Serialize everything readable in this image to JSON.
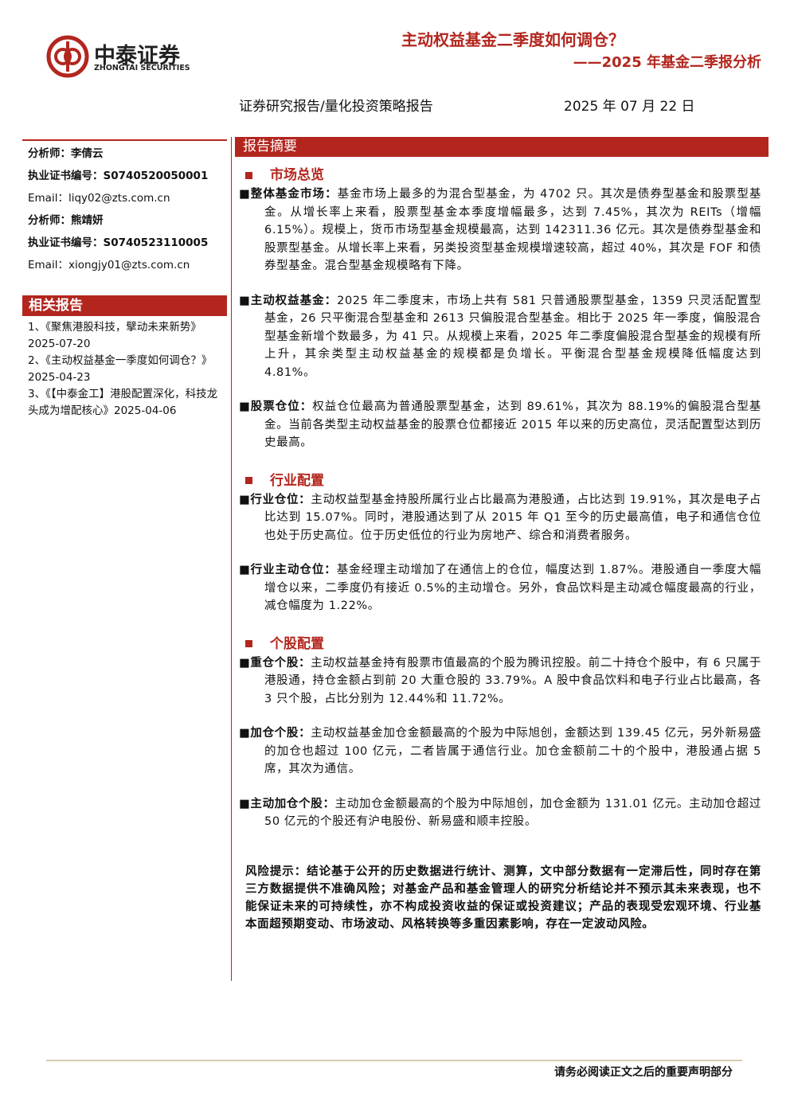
{
  "header": {
    "logo_cn": "中泰证券",
    "logo_en": "ZHONGTAI SECURITIES",
    "title": "主动权益基金二季度如何调仓？",
    "subtitle": "——2025 年基金二季报分析",
    "report_type": "证券研究报告/量化投资策略报告",
    "date": "2025 年 07 月 22 日"
  },
  "sidebar": {
    "analysts": [
      "分析师：李倩云",
      "执业证书编号：S0740520050001",
      "Email：liqy02@zts.com.cn",
      "分析师：熊靖妍",
      "执业证书编号：S0740523110005",
      "Email：xiongjy01@zts.com.cn"
    ],
    "related_title": "相关报告",
    "related": [
      "1、《聚焦港股科技，擘动未来新势》2025-07-20",
      "2、《主动权益基金一季度如何调仓？》2025-04-23",
      "3、《【中泰金工】港股配置深化，科技龙头成为增配核心》2025-04-06"
    ]
  },
  "summary": {
    "title": "报告摘要",
    "sections": [
      {
        "heading": "市场总览",
        "items": [
          {
            "label": "整体基金市场：",
            "text": "基金市场上最多的为混合型基金，为 4702 只。其次是债券型基金和股票型基金。从增长率上来看，股票型基金本季度增幅最多，达到 7.45%，其次为 REITs（增幅 6.15%）。规模上，货币市场型基金规模最高，达到 142311.36 亿元。其次是债券型基金和股票型基金。从增长率上来看，另类投资型基金规模增速较高，超过 40%，其次是 FOF 和债券型基金。混合型基金规模略有下降。"
          },
          {
            "label": "主动权益基金：",
            "text": "2025 年二季度末，市场上共有 581 只普通股票型基金，1359 只灵活配置型基金，26 只平衡混合型基金和 2613 只偏股混合型基金。相比于 2025 年一季度，偏股混合型基金新增个数最多，为 41 只。从规模上来看，2025 年二季度偏股混合型基金的规模有所上升，其余类型主动权益基金的规模都是负增长。平衡混合型基金规模降低幅度达到 4.81%。"
          },
          {
            "label": "股票仓位：",
            "text": "权益仓位最高为普通股票型基金，达到 89.61%，其次为 88.19%的偏股混合型基金。当前各类型主动权益基金的股票仓位都接近 2015 年以来的历史高位，灵活配置型达到历史最高。"
          }
        ]
      },
      {
        "heading": "行业配置",
        "items": [
          {
            "label": "行业仓位：",
            "text": "主动权益型基金持股所属行业占比最高为港股通，占比达到 19.91%，其次是电子占比达到 15.07%。同时，港股通达到了从 2015 年 Q1 至今的历史最高值，电子和通信仓位也处于历史高位。位于历史低位的行业为房地产、综合和消费者服务。"
          },
          {
            "label": "行业主动仓位：",
            "text": "基金经理主动增加了在通信上的仓位，幅度达到 1.87%。港股通自一季度大幅增仓以来，二季度仍有接近 0.5%的主动增仓。另外，食品饮料是主动减仓幅度最高的行业，减仓幅度为 1.22%。"
          }
        ]
      },
      {
        "heading": "个股配置",
        "items": [
          {
            "label": "重仓个股：",
            "text": "主动权益基金持有股票市值最高的个股为腾讯控股。前二十持仓个股中，有 6 只属于港股通，持仓金额占到前 20 大重仓股的 33.79%。A 股中食品饮料和电子行业占比最高，各 3 只个股，占比分别为 12.44%和 11.72%。"
          },
          {
            "label": "加仓个股：",
            "text": "主动权益基金加仓金额最高的个股为中际旭创，金额达到 139.45 亿元，另外新易盛的加仓也超过 100 亿元，二者皆属于通信行业。加仓金额前二十的个股中，港股通占据 5 席，其次为通信。"
          },
          {
            "label": "主动加仓个股：",
            "text": "主动加仓金额最高的个股为中际旭创，加仓金额为 131.01 亿元。主动加仓超过 50 亿元的个股还有沪电股份、新易盛和顺丰控股。"
          }
        ]
      }
    ],
    "risk": "风险提示：结论基于公开的历史数据进行统计、测算，文中部分数据有一定滞后性，同时存在第三方数据提供不准确风险；对基金产品和基金管理人的研究分析结论并不预示其未来表现，也不能保证未来的可持续性，亦不构成投资收益的保证或投资建议；产品的表现受宏观环境、行业基本面超预期变动、市场波动、风格转换等多重因素影响，存在一定波动风险。"
  },
  "footer": "请务必阅读正文之后的重要声明部分"
}
